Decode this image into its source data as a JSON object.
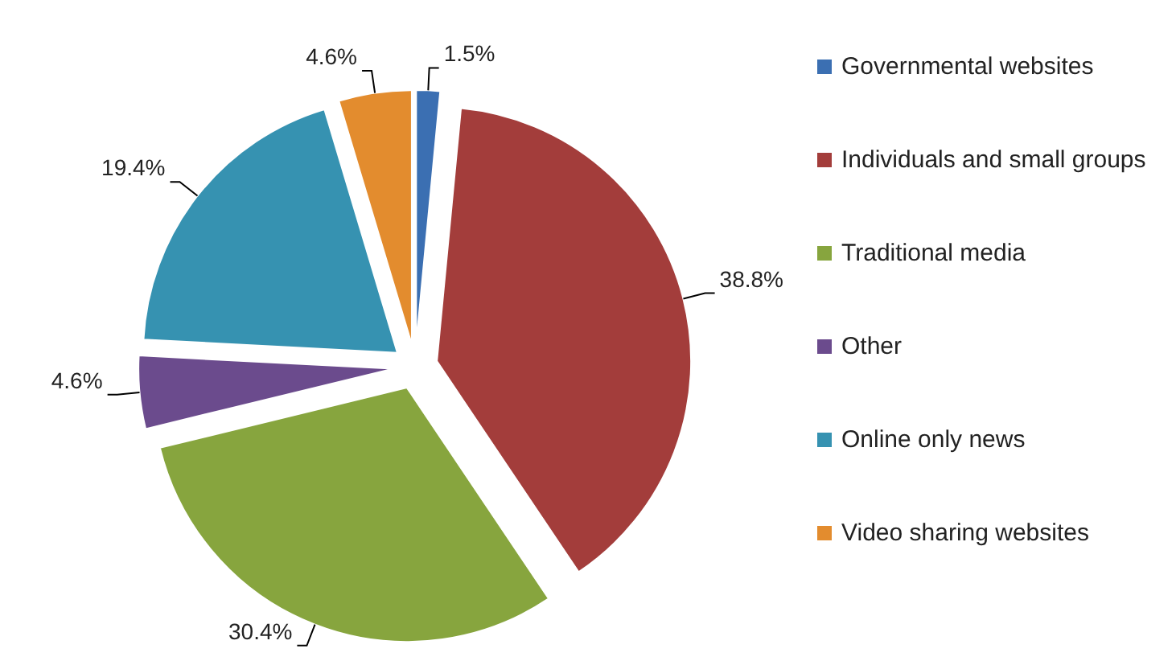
{
  "chart_data": {
    "type": "pie",
    "categories": [
      "Governmental websites",
      "Individuals and small groups",
      "Traditional media",
      "Other",
      "Online only news",
      "Video sharing websites"
    ],
    "values": [
      1.5,
      38.8,
      30.4,
      4.6,
      19.4,
      4.6
    ],
    "value_labels": [
      "1.5%",
      "38.8%",
      "30.4%",
      "4.6%",
      "19.4%",
      "4.6%"
    ],
    "colors": [
      "#3b6fb2",
      "#a33d3b",
      "#87a53e",
      "#6b4b8d",
      "#3692b1",
      "#e38c2e"
    ],
    "legend": "right"
  }
}
